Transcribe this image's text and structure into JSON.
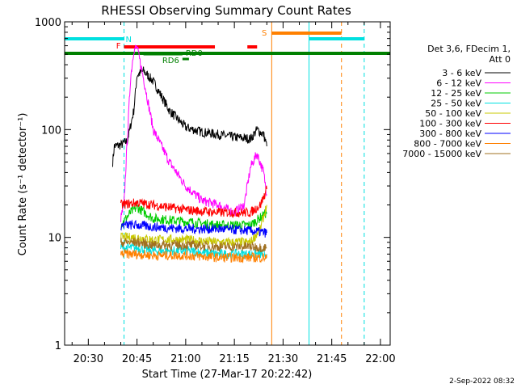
{
  "chart_data": {
    "type": "line",
    "title": "RHESSI Observing Summary Count Rates",
    "xlabel": "Start Time (27-Mar-17 20:22:42)",
    "ylabel": "Count Rate (s⁻¹ detector⁻¹)",
    "yscale": "log",
    "ylim": [
      1,
      1000
    ],
    "xlim": [
      "20:22:42",
      "22:03:00"
    ],
    "y_ticks": [
      "1",
      "10",
      "100",
      "1000"
    ],
    "x_ticks": [
      "20:30",
      "20:45",
      "21:00",
      "21:15",
      "21:30",
      "21:45",
      "22:00"
    ],
    "legend_title": [
      "Det 3,6, FDecim 1,",
      "Att 0"
    ],
    "legend_position": "right",
    "series": [
      {
        "name": "3 - 6 keV",
        "color": "#000000",
        "x": [
          "20:37:30",
          "20:38:00",
          "20:40:00",
          "20:42:00",
          "20:44:00",
          "20:45:00",
          "20:47:00",
          "20:50:00",
          "20:55:00",
          "21:00:00",
          "21:05:00",
          "21:10:00",
          "21:15:00",
          "21:20:00",
          "21:22:00",
          "21:24:00",
          "21:25:00"
        ],
        "y": [
          50,
          70,
          72,
          78,
          150,
          320,
          350,
          280,
          150,
          105,
          95,
          90,
          85,
          82,
          100,
          90,
          70
        ]
      },
      {
        "name": "6 - 12 keV",
        "color": "#ff00ff",
        "x": [
          "20:40:00",
          "20:41:00",
          "20:42:00",
          "20:43:00",
          "20:44:00",
          "20:45:00",
          "20:47:00",
          "20:50:00",
          "20:55:00",
          "21:00:00",
          "21:05:00",
          "21:10:00",
          "21:15:00",
          "21:18:00",
          "21:20:00",
          "21:22:00",
          "21:24:00",
          "21:25:00"
        ],
        "y": [
          15,
          20,
          80,
          300,
          550,
          580,
          300,
          100,
          50,
          30,
          22,
          20,
          17,
          20,
          45,
          60,
          40,
          25
        ]
      },
      {
        "name": "12 - 25 keV",
        "color": "#00cc00",
        "x": [
          "20:40:00",
          "20:43:00",
          "20:45:00",
          "20:50:00",
          "21:00:00",
          "21:10:00",
          "21:20:00",
          "21:25:00"
        ],
        "y": [
          13,
          17,
          19,
          15,
          14,
          13,
          13,
          17
        ]
      },
      {
        "name": "25 - 50 keV",
        "color": "#00e0e0",
        "x": [
          "20:40:00",
          "20:45:00",
          "20:50:00",
          "21:00:00",
          "21:10:00",
          "21:20:00",
          "21:25:00"
        ],
        "y": [
          8,
          8,
          7.5,
          7.5,
          7,
          7,
          7
        ]
      },
      {
        "name": "50 - 100 keV",
        "color": "#c8c800",
        "x": [
          "20:40:00",
          "20:45:00",
          "20:50:00",
          "21:00:00",
          "21:10:00",
          "21:20:00",
          "21:23:00",
          "21:25:00"
        ],
        "y": [
          10,
          10,
          9.5,
          9.5,
          9,
          9,
          12,
          20
        ]
      },
      {
        "name": "100 - 300 keV",
        "color": "#ff0000",
        "x": [
          "20:40:00",
          "20:45:00",
          "20:50:00",
          "21:00:00",
          "21:10:00",
          "21:20:00",
          "21:23:00",
          "21:25:00"
        ],
        "y": [
          20,
          21,
          20,
          18,
          17,
          17,
          20,
          28
        ]
      },
      {
        "name": "300 - 800 keV",
        "color": "#0000ff",
        "x": [
          "20:40:00",
          "20:45:00",
          "20:50:00",
          "21:00:00",
          "21:10:00",
          "21:20:00",
          "21:25:00"
        ],
        "y": [
          13,
          13,
          12.5,
          12,
          12,
          11.5,
          11
        ]
      },
      {
        "name": "800 - 7000 keV",
        "color": "#ff8000",
        "x": [
          "20:40:00",
          "20:45:00",
          "20:50:00",
          "21:00:00",
          "21:10:00",
          "21:20:00",
          "21:25:00"
        ],
        "y": [
          7,
          7,
          6.8,
          6.8,
          6.5,
          6.5,
          6.5
        ]
      },
      {
        "name": "7000 - 15000 keV",
        "color": "#a07020",
        "x": [
          "20:40:00",
          "20:45:00",
          "20:50:00",
          "21:00:00",
          "21:10:00",
          "21:20:00",
          "21:25:00"
        ],
        "y": [
          9,
          9,
          8.5,
          8.5,
          8.2,
          8.2,
          8
        ]
      }
    ],
    "annotations": {
      "night": {
        "label": "N",
        "color": "#00e0e0",
        "bars": [
          [
            "20:22:42",
            "20:41:00"
          ],
          [
            "21:38:00",
            "21:55:00"
          ]
        ]
      },
      "flare": {
        "label": "F",
        "color": "#ff0000",
        "bars": [
          [
            "20:41:00",
            "21:09:00"
          ],
          [
            "21:19:00",
            "21:22:00"
          ]
        ]
      },
      "saa": {
        "label": "S",
        "color": "#ff8000",
        "bars": [
          [
            "21:26:30",
            "21:48:00"
          ]
        ]
      },
      "rd6": {
        "label": "RD6",
        "color": "#008000",
        "bars": [
          [
            "20:59:00",
            "21:01:00"
          ]
        ]
      },
      "rd0": {
        "label": "RD0",
        "color": "#008000",
        "bars": [
          [
            "20:47:00",
            "20:59:00"
          ]
        ]
      },
      "data_bar": {
        "color": "#008000",
        "bars": [
          [
            "20:22:42",
            "22:03:00"
          ]
        ]
      }
    },
    "vertical_markers": [
      {
        "time": "20:41:00",
        "color": "#00e0e0",
        "dash": true
      },
      {
        "time": "21:26:30",
        "color": "#ff8000",
        "dash": false
      },
      {
        "time": "21:38:00",
        "color": "#00e0e0",
        "dash": false
      },
      {
        "time": "21:48:00",
        "color": "#ff8000",
        "dash": true
      },
      {
        "time": "21:55:00",
        "color": "#00e0e0",
        "dash": true
      },
      {
        "time": "20:22:42",
        "color": "#00e0e0",
        "dash": false
      }
    ]
  },
  "footer": {
    "date": "2-Sep-2022 08:32"
  }
}
